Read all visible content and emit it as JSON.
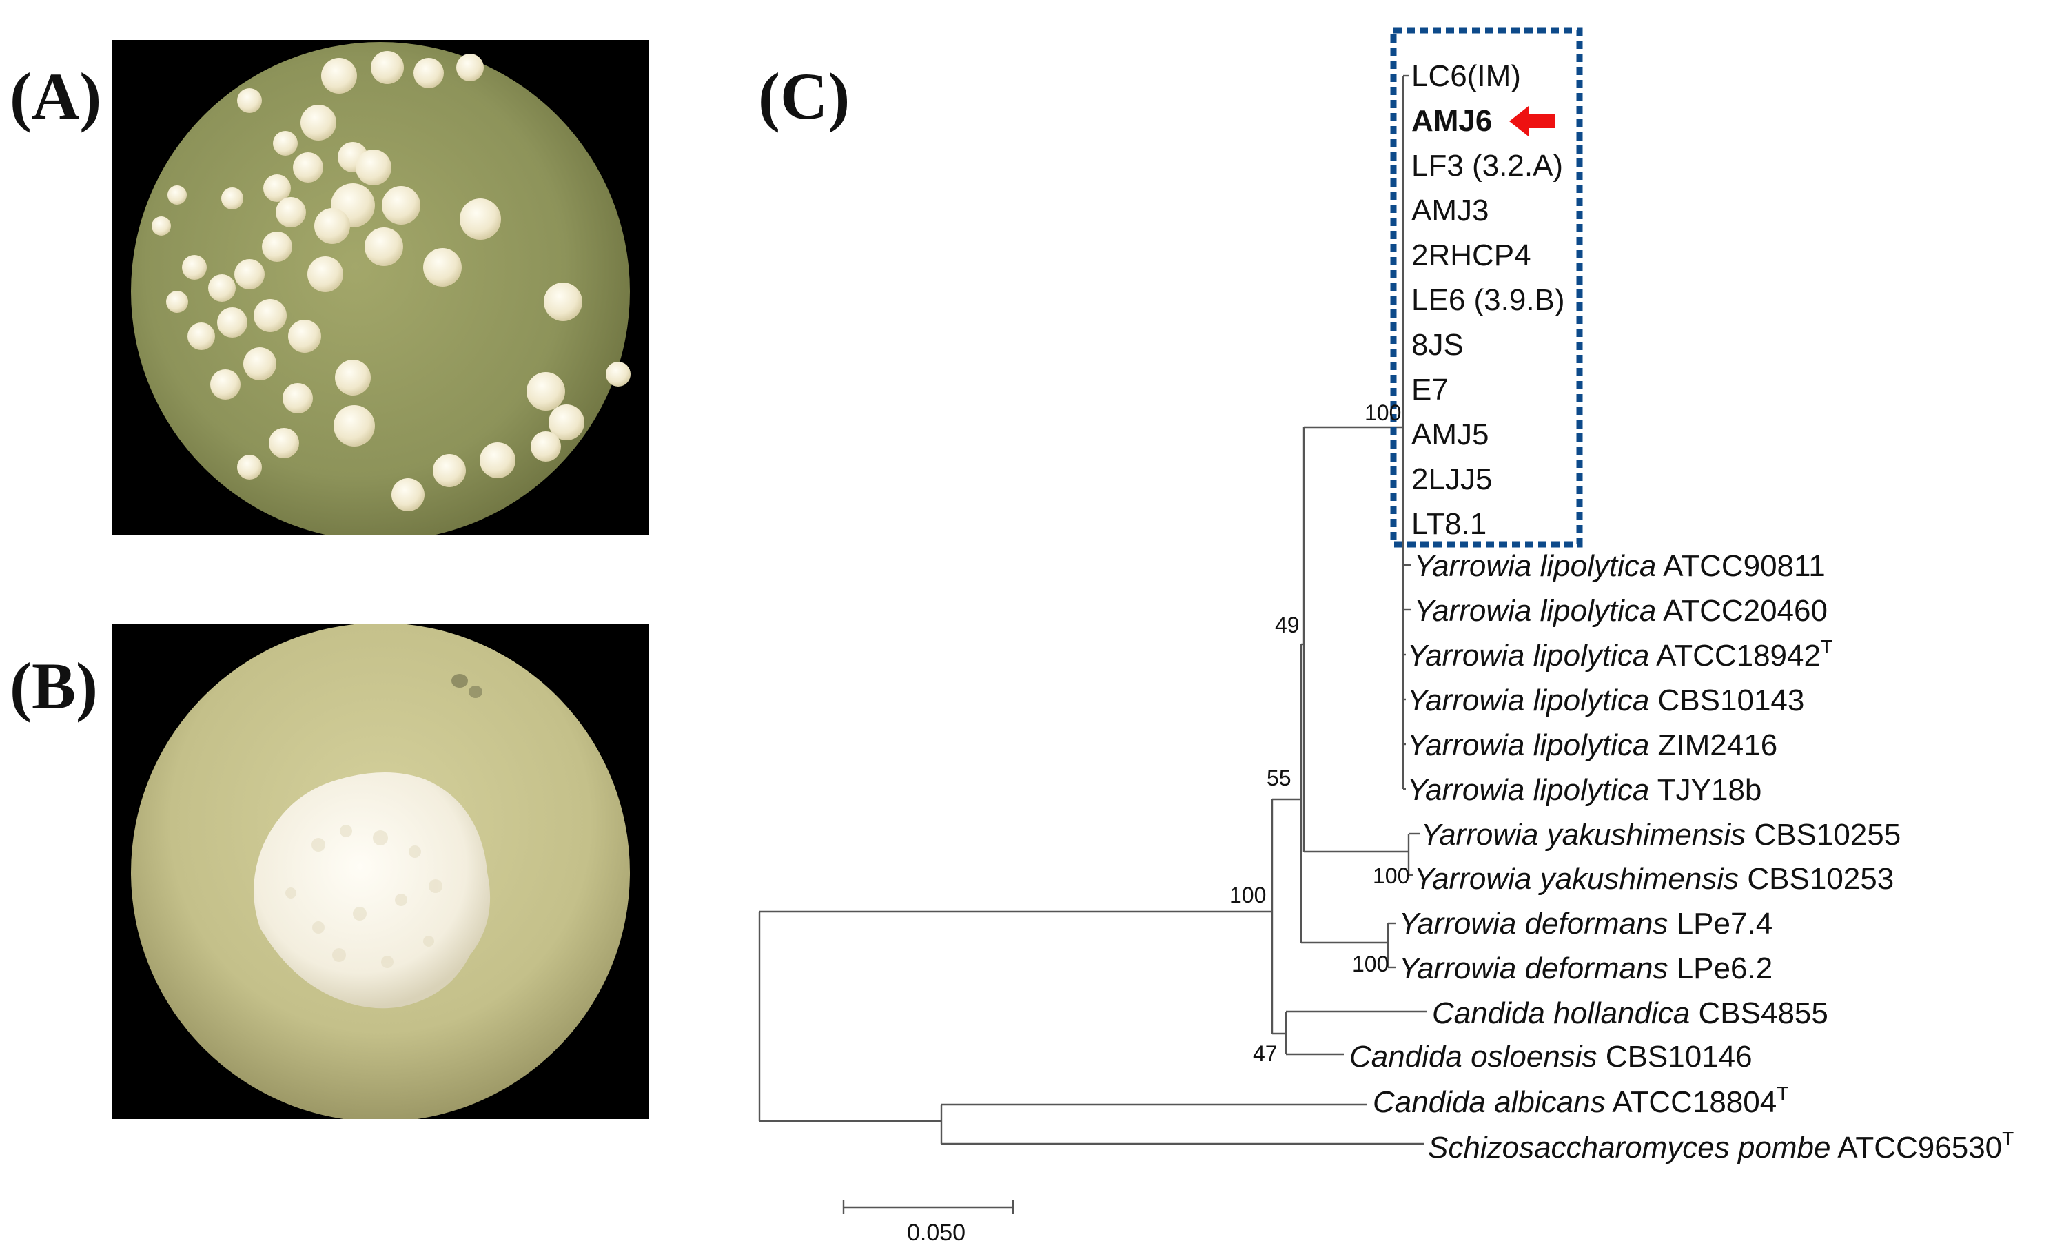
{
  "panels": {
    "a_label": "(A)",
    "b_label": "(B)",
    "c_label": "(C)"
  },
  "photo_a": {
    "icon": "yeast-colonies-plate-photo",
    "plate_color": "#8d935a",
    "colony_color": "#f4eed8"
  },
  "photo_b": {
    "icon": "single-colony-plate-photo",
    "plate_color": "#c4c08a",
    "colony_color": "#f5f2e6"
  },
  "tree": {
    "highlight_box_color": "#0d4a8a",
    "arrow_color": "#ee1111",
    "boxed_taxa": [
      "LC6(IM)",
      "AMJ6",
      "LF3 (3.2.A)",
      "AMJ3",
      "2RHCP4",
      "LE6 (3.9.B)",
      "8JS",
      "E7",
      "AMJ5",
      "2LJJ5",
      "LT8.1"
    ],
    "highlighted_taxon": "AMJ6",
    "taxa": [
      {
        "genus": "Yarrowia lipolytica",
        "strain": "ATCC90811",
        "sup": ""
      },
      {
        "genus": "Yarrowia lipolytica",
        "strain": "ATCC20460",
        "sup": ""
      },
      {
        "genus": "Yarrowia lipolytica",
        "strain": "ATCC18942",
        "sup": "T"
      },
      {
        "genus": "Yarrowia lipolytica",
        "strain": "CBS10143",
        "sup": ""
      },
      {
        "genus": "Yarrowia lipolytica",
        "strain": "ZIM2416",
        "sup": ""
      },
      {
        "genus": "Yarrowia lipolytica",
        "strain": "TJY18b",
        "sup": ""
      },
      {
        "genus": "Yarrowia yakushimensis",
        "strain": "CBS10255",
        "sup": ""
      },
      {
        "genus": "Yarrowia yakushimensis",
        "strain": "CBS10253",
        "sup": ""
      },
      {
        "genus": "Yarrowia deformans",
        "strain": "LPe7.4",
        "sup": ""
      },
      {
        "genus": "Yarrowia deformans",
        "strain": "LPe6.2",
        "sup": ""
      },
      {
        "genus": "Candida hollandica",
        "strain": "CBS4855",
        "sup": ""
      },
      {
        "genus": "Candida osloensis",
        "strain": "CBS10146",
        "sup": ""
      },
      {
        "genus": "Candida albicans",
        "strain": "ATCC18804",
        "sup": "T"
      },
      {
        "genus": "Schizosaccharomyces pombe",
        "strain": "ATCC96530",
        "sup": "T"
      }
    ],
    "bootstrap": {
      "lipolytica_clade": "100",
      "lipo_yak": "49",
      "yarrowia_clade": "55",
      "ingroup": "100",
      "yakushimensis": "100",
      "deformans": "100",
      "candida_pair": "47"
    },
    "scale_bar_label": "0.050"
  }
}
